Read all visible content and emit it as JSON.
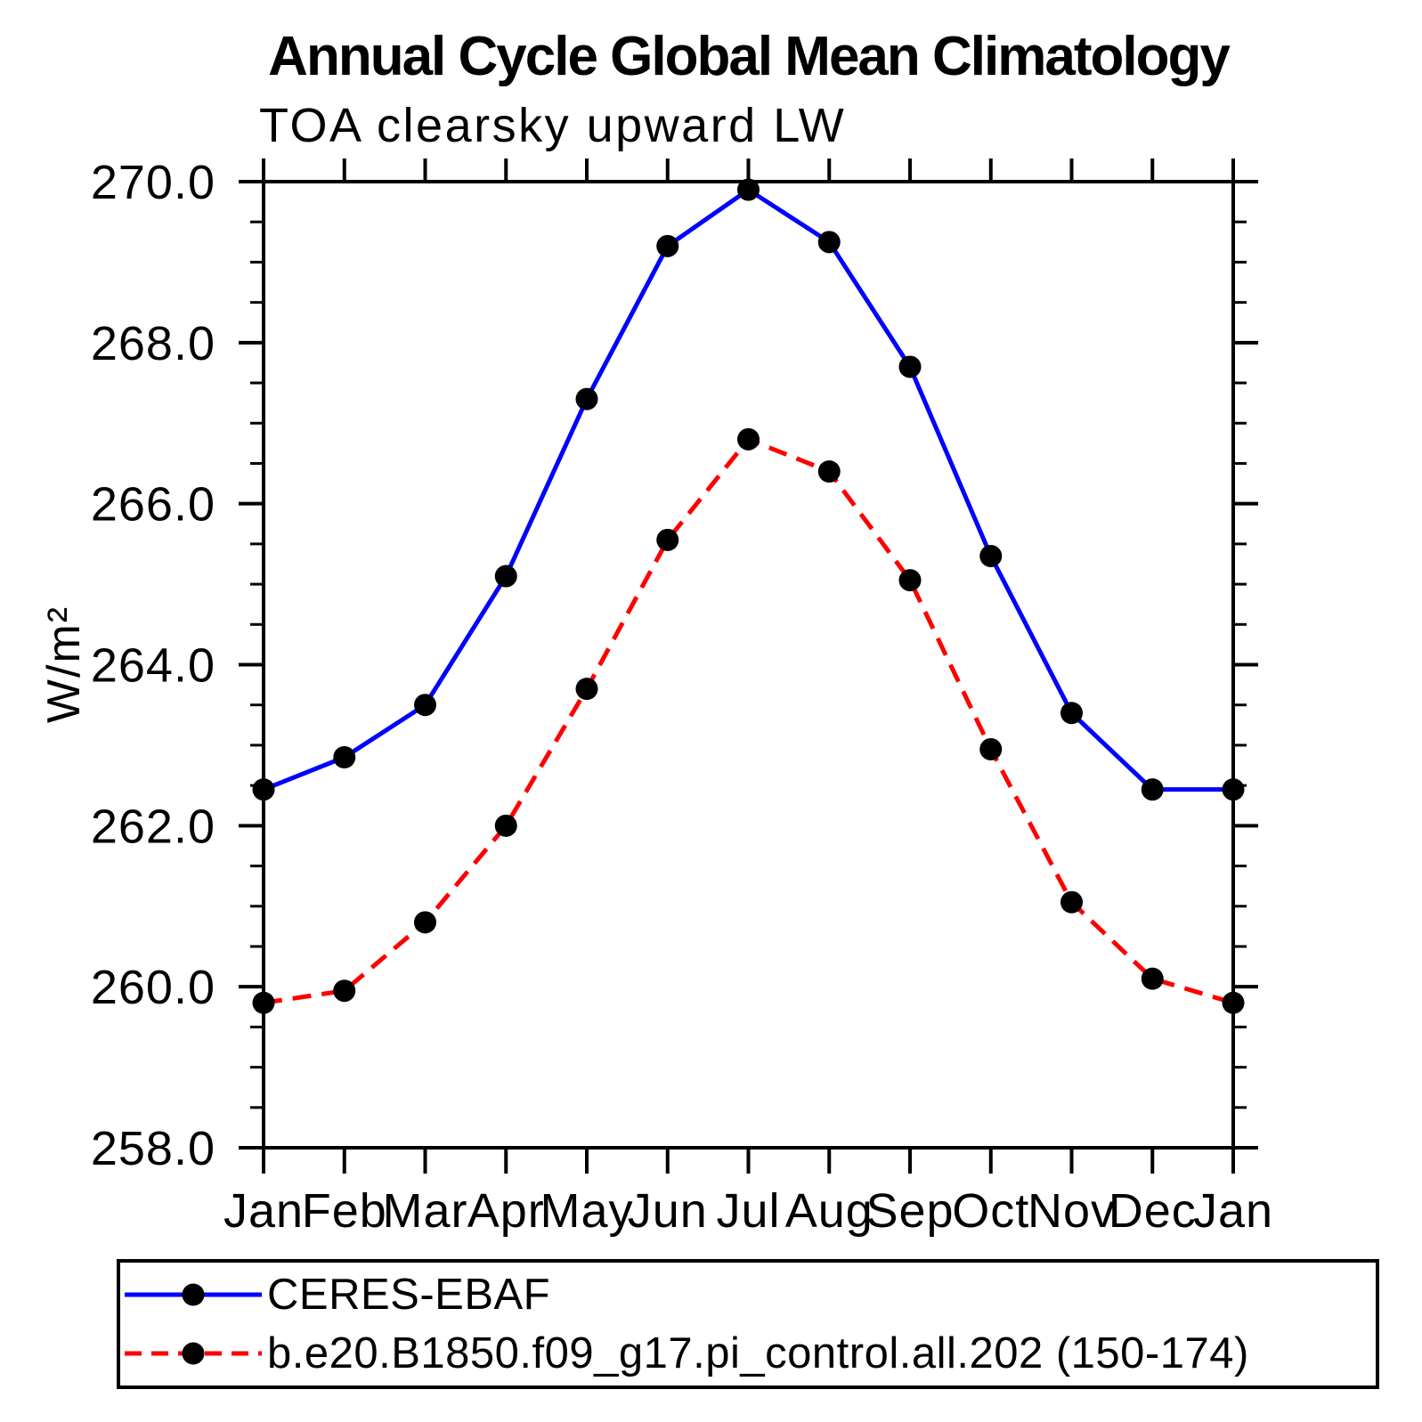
{
  "figure": {
    "title": "Annual Cycle Global Mean Climatology",
    "subtitle": "TOA clearsky upward LW",
    "ylabel": "W/m²"
  },
  "chart_data": {
    "type": "line",
    "title": "Annual Cycle Global Mean Climatology",
    "subtitle": "TOA clearsky upward LW",
    "xlabel": "",
    "ylabel": "W/m²",
    "categories": [
      "Jan",
      "Feb",
      "Mar",
      "Apr",
      "May",
      "Jun",
      "Jul",
      "Aug",
      "Sep",
      "Oct",
      "Nov",
      "Dec",
      "Jan"
    ],
    "ylim": [
      258.0,
      270.0
    ],
    "yticks": [
      258.0,
      260.0,
      262.0,
      264.0,
      266.0,
      268.0,
      270.0
    ],
    "ytick_minor_step": 0.5,
    "grid": false,
    "frame": "box-with-outward-ticks",
    "legend_position": "below-plot",
    "marker": "filled-circle",
    "marker_color": "#000000",
    "series": [
      {
        "name": "CERES-EBAF",
        "color": "#0000ff",
        "line_style": "solid",
        "values": [
          262.45,
          262.85,
          263.5,
          265.1,
          267.3,
          269.2,
          269.9,
          269.25,
          267.7,
          265.35,
          263.4,
          262.45,
          262.45
        ]
      },
      {
        "name": "b.e20.B1850.f09_g17.pi_control.all.202 (150-174)",
        "color": "#ff0000",
        "line_style": "dashed",
        "values": [
          259.8,
          259.95,
          260.8,
          262.0,
          263.7,
          265.55,
          266.8,
          266.4,
          265.05,
          262.95,
          261.05,
          260.1,
          259.8
        ]
      }
    ]
  }
}
